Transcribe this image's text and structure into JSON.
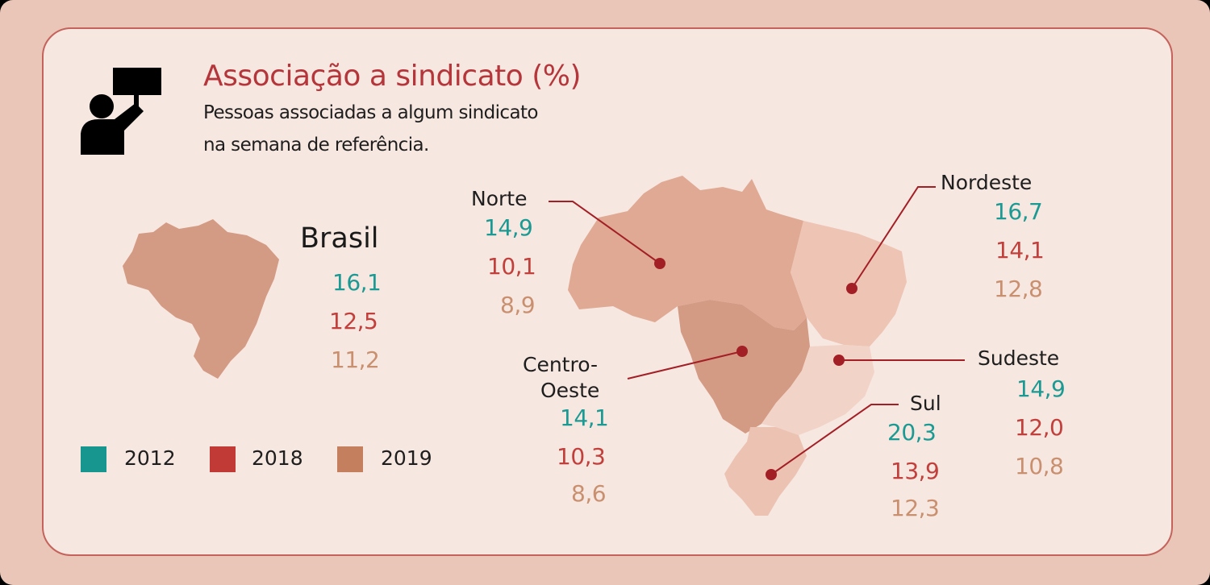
{
  "header": {
    "title": "Associação a sindicato (%)",
    "subtitle_line1": "Pessoas associadas a algum sindicato",
    "subtitle_line2": "na semana de referência.",
    "icon": "protester-sign-icon"
  },
  "brasil": {
    "name": "Brasil",
    "v2012": "16,1",
    "v2018": "12,5",
    "v2019": "11,2"
  },
  "regions": {
    "norte": {
      "name": "Norte",
      "v2012": "14,9",
      "v2018": "10,1",
      "v2019": "8,9"
    },
    "nordeste": {
      "name": "Nordeste",
      "v2012": "16,7",
      "v2018": "14,1",
      "v2019": "12,8"
    },
    "centro_oeste": {
      "name_line1": "Centro-",
      "name_line2": "Oeste",
      "v2012": "14,1",
      "v2018": "10,3",
      "v2019": "8,6"
    },
    "sudeste": {
      "name": "Sudeste",
      "v2012": "14,9",
      "v2018": "12,0",
      "v2019": "10,8"
    },
    "sul": {
      "name": "Sul",
      "v2012": "20,3",
      "v2018": "13,9",
      "v2019": "12,3"
    }
  },
  "legend": [
    {
      "label": "2012",
      "color": "#16968f"
    },
    {
      "label": "2018",
      "color": "#c23a36"
    },
    {
      "label": "2019",
      "color": "#c4805e"
    }
  ],
  "colors": {
    "background": "#e9c6b8",
    "panel": "#f7e7e1",
    "accent": "#b5363a",
    "marker": "#a31f26"
  }
}
